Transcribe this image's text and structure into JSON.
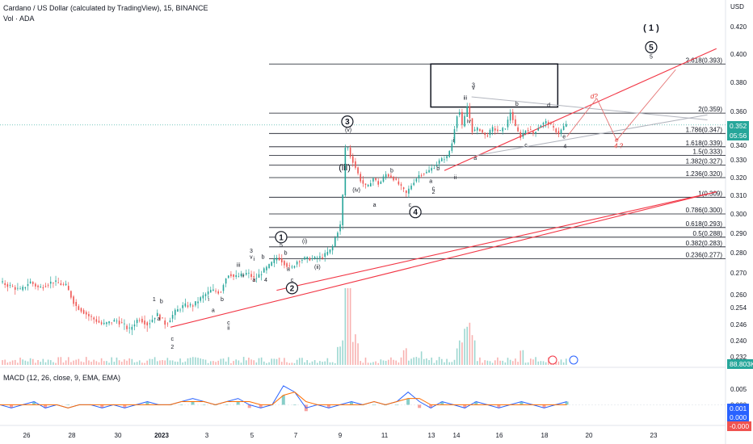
{
  "header": {
    "symbol_title": "Cardano / US Dollar (calculated by TradingView), 15, BINANCE",
    "volume_label": "Vol · ADA",
    "macd_label": "MACD (12, 26, close, 9, EMA, EMA)",
    "currency_label": "USD"
  },
  "price_tags": {
    "last_price": "0.352",
    "countdown": "05:56",
    "volume_value": "88.803K",
    "macd_value": "0.001",
    "signal_value": "0.000",
    "histogram_value": "-0.000"
  },
  "colors": {
    "up": "#26a69a",
    "down": "#ef5350",
    "level_line": "#131722",
    "trendline": "#f23645",
    "channel_line": "#b2b5be",
    "macd_line": "#2962ff",
    "signal_line": "#ff6d00",
    "background": "#ffffff"
  },
  "chart_data": [
    {
      "type": "candlestick",
      "title": "Cardano / US Dollar (calculated by TradingView), 15, BINANCE",
      "xlabel": "",
      "ylabel": "USD",
      "ylim": [
        0.23,
        0.424
      ],
      "y_ticks": [
        "0.420",
        "0.400",
        "0.380",
        "0.360",
        "0.340",
        "0.330",
        "0.320",
        "0.310",
        "0.300",
        "0.290",
        "0.280",
        "0.270",
        "0.260",
        "0.254",
        "0.246",
        "0.240",
        "0.232"
      ],
      "x_ticks": [
        "26",
        "28",
        "30",
        "2023",
        "3",
        "5",
        "7",
        "9",
        "11",
        "13",
        "14",
        "16",
        "18",
        "20",
        "23"
      ],
      "price_path": [
        {
          "x": 0.0,
          "y": 0.266
        },
        {
          "x": 2.5,
          "y": 0.262
        },
        {
          "x": 3.5,
          "y": 0.266
        },
        {
          "x": 4.5,
          "y": 0.263
        },
        {
          "x": 6.0,
          "y": 0.266
        },
        {
          "x": 7.5,
          "y": 0.264
        },
        {
          "x": 8.5,
          "y": 0.255
        },
        {
          "x": 10.0,
          "y": 0.25
        },
        {
          "x": 11.5,
          "y": 0.246
        },
        {
          "x": 13.0,
          "y": 0.248
        },
        {
          "x": 14.5,
          "y": 0.244
        },
        {
          "x": 15.5,
          "y": 0.249
        },
        {
          "x": 16.5,
          "y": 0.246
        },
        {
          "x": 17.5,
          "y": 0.251
        },
        {
          "x": 18.5,
          "y": 0.246
        },
        {
          "x": 19.5,
          "y": 0.252
        },
        {
          "x": 20.5,
          "y": 0.255
        },
        {
          "x": 21.5,
          "y": 0.255
        },
        {
          "x": 22.5,
          "y": 0.259
        },
        {
          "x": 23.5,
          "y": 0.262
        },
        {
          "x": 24.5,
          "y": 0.261
        },
        {
          "x": 25.0,
          "y": 0.267
        },
        {
          "x": 25.5,
          "y": 0.27
        },
        {
          "x": 26.0,
          "y": 0.268
        },
        {
          "x": 27.0,
          "y": 0.269
        },
        {
          "x": 27.5,
          "y": 0.27
        },
        {
          "x": 28.3,
          "y": 0.267
        },
        {
          "x": 29.0,
          "y": 0.27
        },
        {
          "x": 30.0,
          "y": 0.274
        },
        {
          "x": 30.8,
          "y": 0.278
        },
        {
          "x": 31.5,
          "y": 0.275
        },
        {
          "x": 32.3,
          "y": 0.272
        },
        {
          "x": 33.0,
          "y": 0.276
        },
        {
          "x": 33.8,
          "y": 0.277
        },
        {
          "x": 34.8,
          "y": 0.277
        },
        {
          "x": 35.8,
          "y": 0.278
        },
        {
          "x": 36.8,
          "y": 0.282
        },
        {
          "x": 37.3,
          "y": 0.29
        },
        {
          "x": 37.7,
          "y": 0.293
        },
        {
          "x": 38.0,
          "y": 0.31
        },
        {
          "x": 38.2,
          "y": 0.336
        },
        {
          "x": 38.4,
          "y": 0.342
        },
        {
          "x": 38.8,
          "y": 0.333
        },
        {
          "x": 39.3,
          "y": 0.327
        },
        {
          "x": 40.0,
          "y": 0.318
        },
        {
          "x": 40.7,
          "y": 0.314
        },
        {
          "x": 41.3,
          "y": 0.32
        },
        {
          "x": 42.0,
          "y": 0.316
        },
        {
          "x": 42.7,
          "y": 0.322
        },
        {
          "x": 43.5,
          "y": 0.32
        },
        {
          "x": 44.2,
          "y": 0.316
        },
        {
          "x": 45.0,
          "y": 0.311
        },
        {
          "x": 45.7,
          "y": 0.317
        },
        {
          "x": 46.5,
          "y": 0.322
        },
        {
          "x": 47.3,
          "y": 0.323
        },
        {
          "x": 48.0,
          "y": 0.326
        },
        {
          "x": 48.8,
          "y": 0.33
        },
        {
          "x": 49.5,
          "y": 0.332
        },
        {
          "x": 50.0,
          "y": 0.34
        },
        {
          "x": 50.5,
          "y": 0.356
        },
        {
          "x": 50.8,
          "y": 0.362
        },
        {
          "x": 51.2,
          "y": 0.35
        },
        {
          "x": 51.7,
          "y": 0.364
        },
        {
          "x": 52.3,
          "y": 0.348
        },
        {
          "x": 53.0,
          "y": 0.35
        },
        {
          "x": 53.8,
          "y": 0.345
        },
        {
          "x": 54.5,
          "y": 0.35
        },
        {
          "x": 55.3,
          "y": 0.348
        },
        {
          "x": 56.0,
          "y": 0.351
        },
        {
          "x": 56.5,
          "y": 0.36
        },
        {
          "x": 57.0,
          "y": 0.351
        },
        {
          "x": 57.6,
          "y": 0.345
        },
        {
          "x": 58.3,
          "y": 0.35
        },
        {
          "x": 59.0,
          "y": 0.347
        },
        {
          "x": 59.8,
          "y": 0.352
        },
        {
          "x": 60.5,
          "y": 0.354
        },
        {
          "x": 61.2,
          "y": 0.35
        },
        {
          "x": 61.8,
          "y": 0.347
        },
        {
          "x": 62.5,
          "y": 0.352
        }
      ],
      "horizontal_levels": [
        {
          "label": "2.618(0.393)",
          "value": 0.393
        },
        {
          "label": "2(0.359)",
          "value": 0.359
        },
        {
          "label": "1.786(0.347)",
          "value": 0.347
        },
        {
          "label": "1.618(0.339)",
          "value": 0.339
        },
        {
          "label": "1.5(0.333)",
          "value": 0.333
        },
        {
          "label": "1.382(0.327)",
          "value": 0.327
        },
        {
          "label": "1.236(0.320)",
          "value": 0.32
        },
        {
          "label": "1(0.309)",
          "value": 0.309
        },
        {
          "label": "0.786(0.300)",
          "value": 0.3
        },
        {
          "label": "0.618(0.293)",
          "value": 0.293
        },
        {
          "label": "0.5(0.288)",
          "value": 0.288
        },
        {
          "label": "0.382(0.283)",
          "value": 0.283
        },
        {
          "label": "0.236(0.277)",
          "value": 0.277
        }
      ],
      "wave_labels": [
        {
          "text": "1",
          "circled": true,
          "x": 31.0,
          "y": 0.288
        },
        {
          "text": "2",
          "circled": true,
          "x": 32.2,
          "y": 0.263
        },
        {
          "text": "3",
          "circled": true,
          "x": 38.3,
          "y": 0.354
        },
        {
          "text": "4",
          "circled": true,
          "x": 45.8,
          "y": 0.301
        },
        {
          "text": "5",
          "circled": true,
          "x": 71.8,
          "y": 0.405
        },
        {
          "text": "( 1 )",
          "circled": false,
          "x": 71.8,
          "y": 0.417
        },
        {
          "text": "(i)",
          "circled": false,
          "x": 33.6,
          "y": 0.285
        },
        {
          "text": "(ii)",
          "circled": false,
          "x": 35.0,
          "y": 0.272
        },
        {
          "text": "(iii)",
          "circled": false,
          "x": 38.0,
          "y": 0.324
        },
        {
          "text": "(iv)",
          "circled": false,
          "x": 39.3,
          "y": 0.312
        },
        {
          "text": "(v)",
          "circled": false,
          "x": 38.4,
          "y": 0.348
        },
        {
          "text": "1",
          "circled": false,
          "x": 17.0,
          "y": 0.257
        },
        {
          "text": "2",
          "circled": false,
          "x": 19.0,
          "y": 0.236
        },
        {
          "text": "3",
          "circled": false,
          "x": 27.7,
          "y": 0.28
        },
        {
          "text": "4",
          "circled": false,
          "x": 29.3,
          "y": 0.266
        },
        {
          "text": "5",
          "circled": false,
          "x": 31.0,
          "y": 0.283
        },
        {
          "text": "iii",
          "circled": false,
          "x": 26.3,
          "y": 0.273
        },
        {
          "text": "ii",
          "circled": false,
          "x": 25.2,
          "y": 0.244
        },
        {
          "text": "i",
          "circled": false,
          "x": 23.0,
          "y": 0.257
        },
        {
          "text": "a",
          "circled": false,
          "x": 17.5,
          "y": 0.248
        },
        {
          "text": "b",
          "circled": false,
          "x": 17.8,
          "y": 0.256
        },
        {
          "text": "c",
          "circled": false,
          "x": 19.0,
          "y": 0.24
        },
        {
          "text": "a",
          "circled": false,
          "x": 23.5,
          "y": 0.252
        },
        {
          "text": "b",
          "circled": false,
          "x": 24.5,
          "y": 0.257
        },
        {
          "text": "c",
          "circled": false,
          "x": 25.2,
          "y": 0.246
        },
        {
          "text": "i",
          "circled": false,
          "x": 28.0,
          "y": 0.276
        },
        {
          "text": "ii",
          "circled": false,
          "x": 26.8,
          "y": 0.268
        },
        {
          "text": "v",
          "circled": false,
          "x": 27.7,
          "y": 0.277
        },
        {
          "text": "a",
          "circled": false,
          "x": 28.0,
          "y": 0.266
        },
        {
          "text": "b",
          "circled": false,
          "x": 29.0,
          "y": 0.277
        },
        {
          "text": "a",
          "circled": false,
          "x": 31.8,
          "y": 0.271
        },
        {
          "text": "b",
          "circled": false,
          "x": 31.5,
          "y": 0.279
        },
        {
          "text": "c",
          "circled": false,
          "x": 32.2,
          "y": 0.266
        },
        {
          "text": "a",
          "circled": false,
          "x": 41.3,
          "y": 0.304
        },
        {
          "text": "b",
          "circled": false,
          "x": 43.2,
          "y": 0.323
        },
        {
          "text": "c",
          "circled": false,
          "x": 45.2,
          "y": 0.304
        },
        {
          "text": "i",
          "circled": false,
          "x": 50.0,
          "y": 0.342
        },
        {
          "text": "ii",
          "circled": false,
          "x": 50.2,
          "y": 0.319
        },
        {
          "text": "iii",
          "circled": false,
          "x": 51.3,
          "y": 0.368
        },
        {
          "text": "iv",
          "circled": false,
          "x": 51.7,
          "y": 0.353
        },
        {
          "text": "3",
          "circled": false,
          "x": 52.2,
          "y": 0.377
        },
        {
          "text": "v",
          "circled": false,
          "x": 52.2,
          "y": 0.375
        },
        {
          "text": "a",
          "circled": false,
          "x": 52.4,
          "y": 0.33
        },
        {
          "text": "b",
          "circled": false,
          "x": 57.0,
          "y": 0.364
        },
        {
          "text": "c",
          "circled": false,
          "x": 58.0,
          "y": 0.339
        },
        {
          "text": "d",
          "circled": false,
          "x": 60.5,
          "y": 0.363
        },
        {
          "text": "e",
          "circled": false,
          "x": 62.2,
          "y": 0.344
        },
        {
          "text": "4",
          "circled": false,
          "x": 62.3,
          "y": 0.338
        },
        {
          "text": "a",
          "circled": false,
          "x": 47.5,
          "y": 0.317
        },
        {
          "text": "b",
          "circled": false,
          "x": 48.3,
          "y": 0.324
        },
        {
          "text": "c",
          "circled": false,
          "x": 47.8,
          "y": 0.313
        },
        {
          "text": "2",
          "circled": false,
          "x": 47.8,
          "y": 0.311
        },
        {
          "text": "5",
          "circled": false,
          "x": 71.8,
          "y": 0.397
        }
      ],
      "projection_labels": [
        {
          "text": "d?",
          "x": 65.5,
          "y": 0.369
        },
        {
          "text": "e",
          "x": 68.0,
          "y": 0.342
        },
        {
          "text": "4 ?",
          "x": 68.2,
          "y": 0.338
        }
      ],
      "lines": [
        {
          "name": "trendline-upper",
          "x1": 49.0,
          "y1": 0.324,
          "x2": 79.0,
          "y2": 0.404
        },
        {
          "name": "trendline-lower",
          "x1": 18.8,
          "y1": 0.245,
          "x2": 79.0,
          "y2": 0.312
        },
        {
          "name": "trendline-base",
          "x1": 30.5,
          "y1": 0.262,
          "x2": 79.0,
          "y2": 0.312
        },
        {
          "name": "channel-top",
          "x1": 52.0,
          "y1": 0.37,
          "x2": 78.0,
          "y2": 0.355
        },
        {
          "name": "channel-bottom",
          "x1": 52.5,
          "y1": 0.333,
          "x2": 78.0,
          "y2": 0.358
        },
        {
          "name": "projection-1",
          "x1": 62.5,
          "y1": 0.345,
          "x2": 65.8,
          "y2": 0.369
        },
        {
          "name": "projection-2",
          "x1": 65.8,
          "y1": 0.369,
          "x2": 68.0,
          "y2": 0.343
        },
        {
          "name": "projection-3",
          "x1": 68.0,
          "y1": 0.343,
          "x2": 74.5,
          "y2": 0.389
        }
      ],
      "box": {
        "x1": 47.5,
        "y1": 0.393,
        "x2": 61.5,
        "y2": 0.363
      }
    },
    {
      "type": "bar",
      "title": "MACD (12, 26, close, 9, EMA, EMA)",
      "xlabel": "",
      "ylabel": "",
      "y_ticks": [
        "0.005",
        "0.000"
      ],
      "ylim": [
        -0.006,
        0.008
      ],
      "series": [
        {
          "name": "MACD",
          "values": [
            0.0,
            -0.001,
            0.0,
            0.001,
            -0.001,
            0.0,
            -0.001,
            0.0,
            0.0,
            -0.001,
            0.0,
            -0.001,
            0.0,
            0.001,
            0.0,
            0.0,
            0.001,
            0.002,
            0.001,
            0.0,
            0.001,
            0.002,
            0.0,
            -0.001,
            0.0,
            0.006,
            0.004,
            -0.001,
            0.0,
            -0.001,
            0.0,
            0.001,
            0.0,
            0.001,
            0.0,
            0.001,
            0.004,
            0.001,
            -0.001,
            0.001,
            0.0,
            -0.001,
            0.001,
            0.0,
            -0.001,
            0.0,
            0.001,
            0.0,
            -0.001,
            0.0,
            0.001
          ]
        },
        {
          "name": "Signal",
          "values": [
            0.0,
            0.0,
            0.0,
            0.0,
            0.0,
            0.0,
            -0.001,
            0.0,
            0.0,
            0.0,
            0.0,
            0.0,
            0.0,
            0.0,
            0.0,
            0.0,
            0.001,
            0.001,
            0.001,
            0.0,
            0.001,
            0.001,
            0.001,
            0.0,
            0.0,
            0.003,
            0.004,
            0.001,
            0.0,
            0.0,
            0.0,
            0.0,
            0.0,
            0.001,
            0.0,
            0.001,
            0.002,
            0.002,
            0.0,
            0.0,
            0.0,
            0.0,
            0.0,
            0.0,
            0.0,
            0.0,
            0.0,
            0.0,
            0.0,
            0.0,
            0.0
          ]
        }
      ]
    }
  ]
}
